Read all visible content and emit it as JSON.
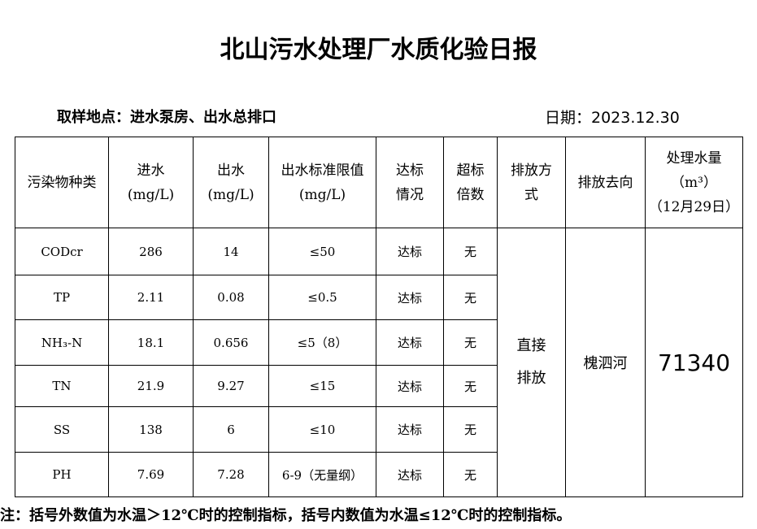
{
  "header": {
    "title": "北山污水处理厂水质化验日报",
    "location": "取样地点：进水泵房、出水总排口",
    "date": "日期：2023.12.30"
  },
  "table": {
    "columns": [
      [
        "污染物种类"
      ],
      [
        "进水",
        "(mg/L)"
      ],
      [
        "出水",
        "(mg/L)"
      ],
      [
        "出水标准限值",
        "(mg/L)"
      ],
      [
        "达标",
        "情况"
      ],
      [
        "超标",
        "倍数"
      ],
      [
        "排放方",
        "式"
      ],
      [
        "排放去向"
      ],
      [
        "处理水量",
        "（m³）",
        "（12月29日）"
      ]
    ],
    "rows": [
      [
        "CODcr",
        "286",
        "14",
        "≤50",
        "达标",
        "无"
      ],
      [
        "TP",
        "2.11",
        "0.08",
        "≤0.5",
        "达标",
        "无"
      ],
      [
        "NH₃-N",
        "18.1",
        "0.656",
        "≤5（8）",
        "达标",
        "无"
      ],
      [
        "TN",
        "21.9",
        "9.27",
        "≤15",
        "达标",
        "无"
      ],
      [
        "SS",
        "138",
        "6",
        "≤10",
        "达标",
        "无"
      ],
      [
        "PH",
        "7.69",
        "7.28",
        "6-9（无量纲）",
        "达标",
        "无"
      ]
    ],
    "discharge_method": [
      "直接",
      "排放"
    ],
    "discharge_destination": "槐泗河",
    "treated_volume": "71340"
  },
  "note": "注：括号外数值为水温＞12℃时的控制指标，括号内数值为水温≤12℃时的控制指标。"
}
